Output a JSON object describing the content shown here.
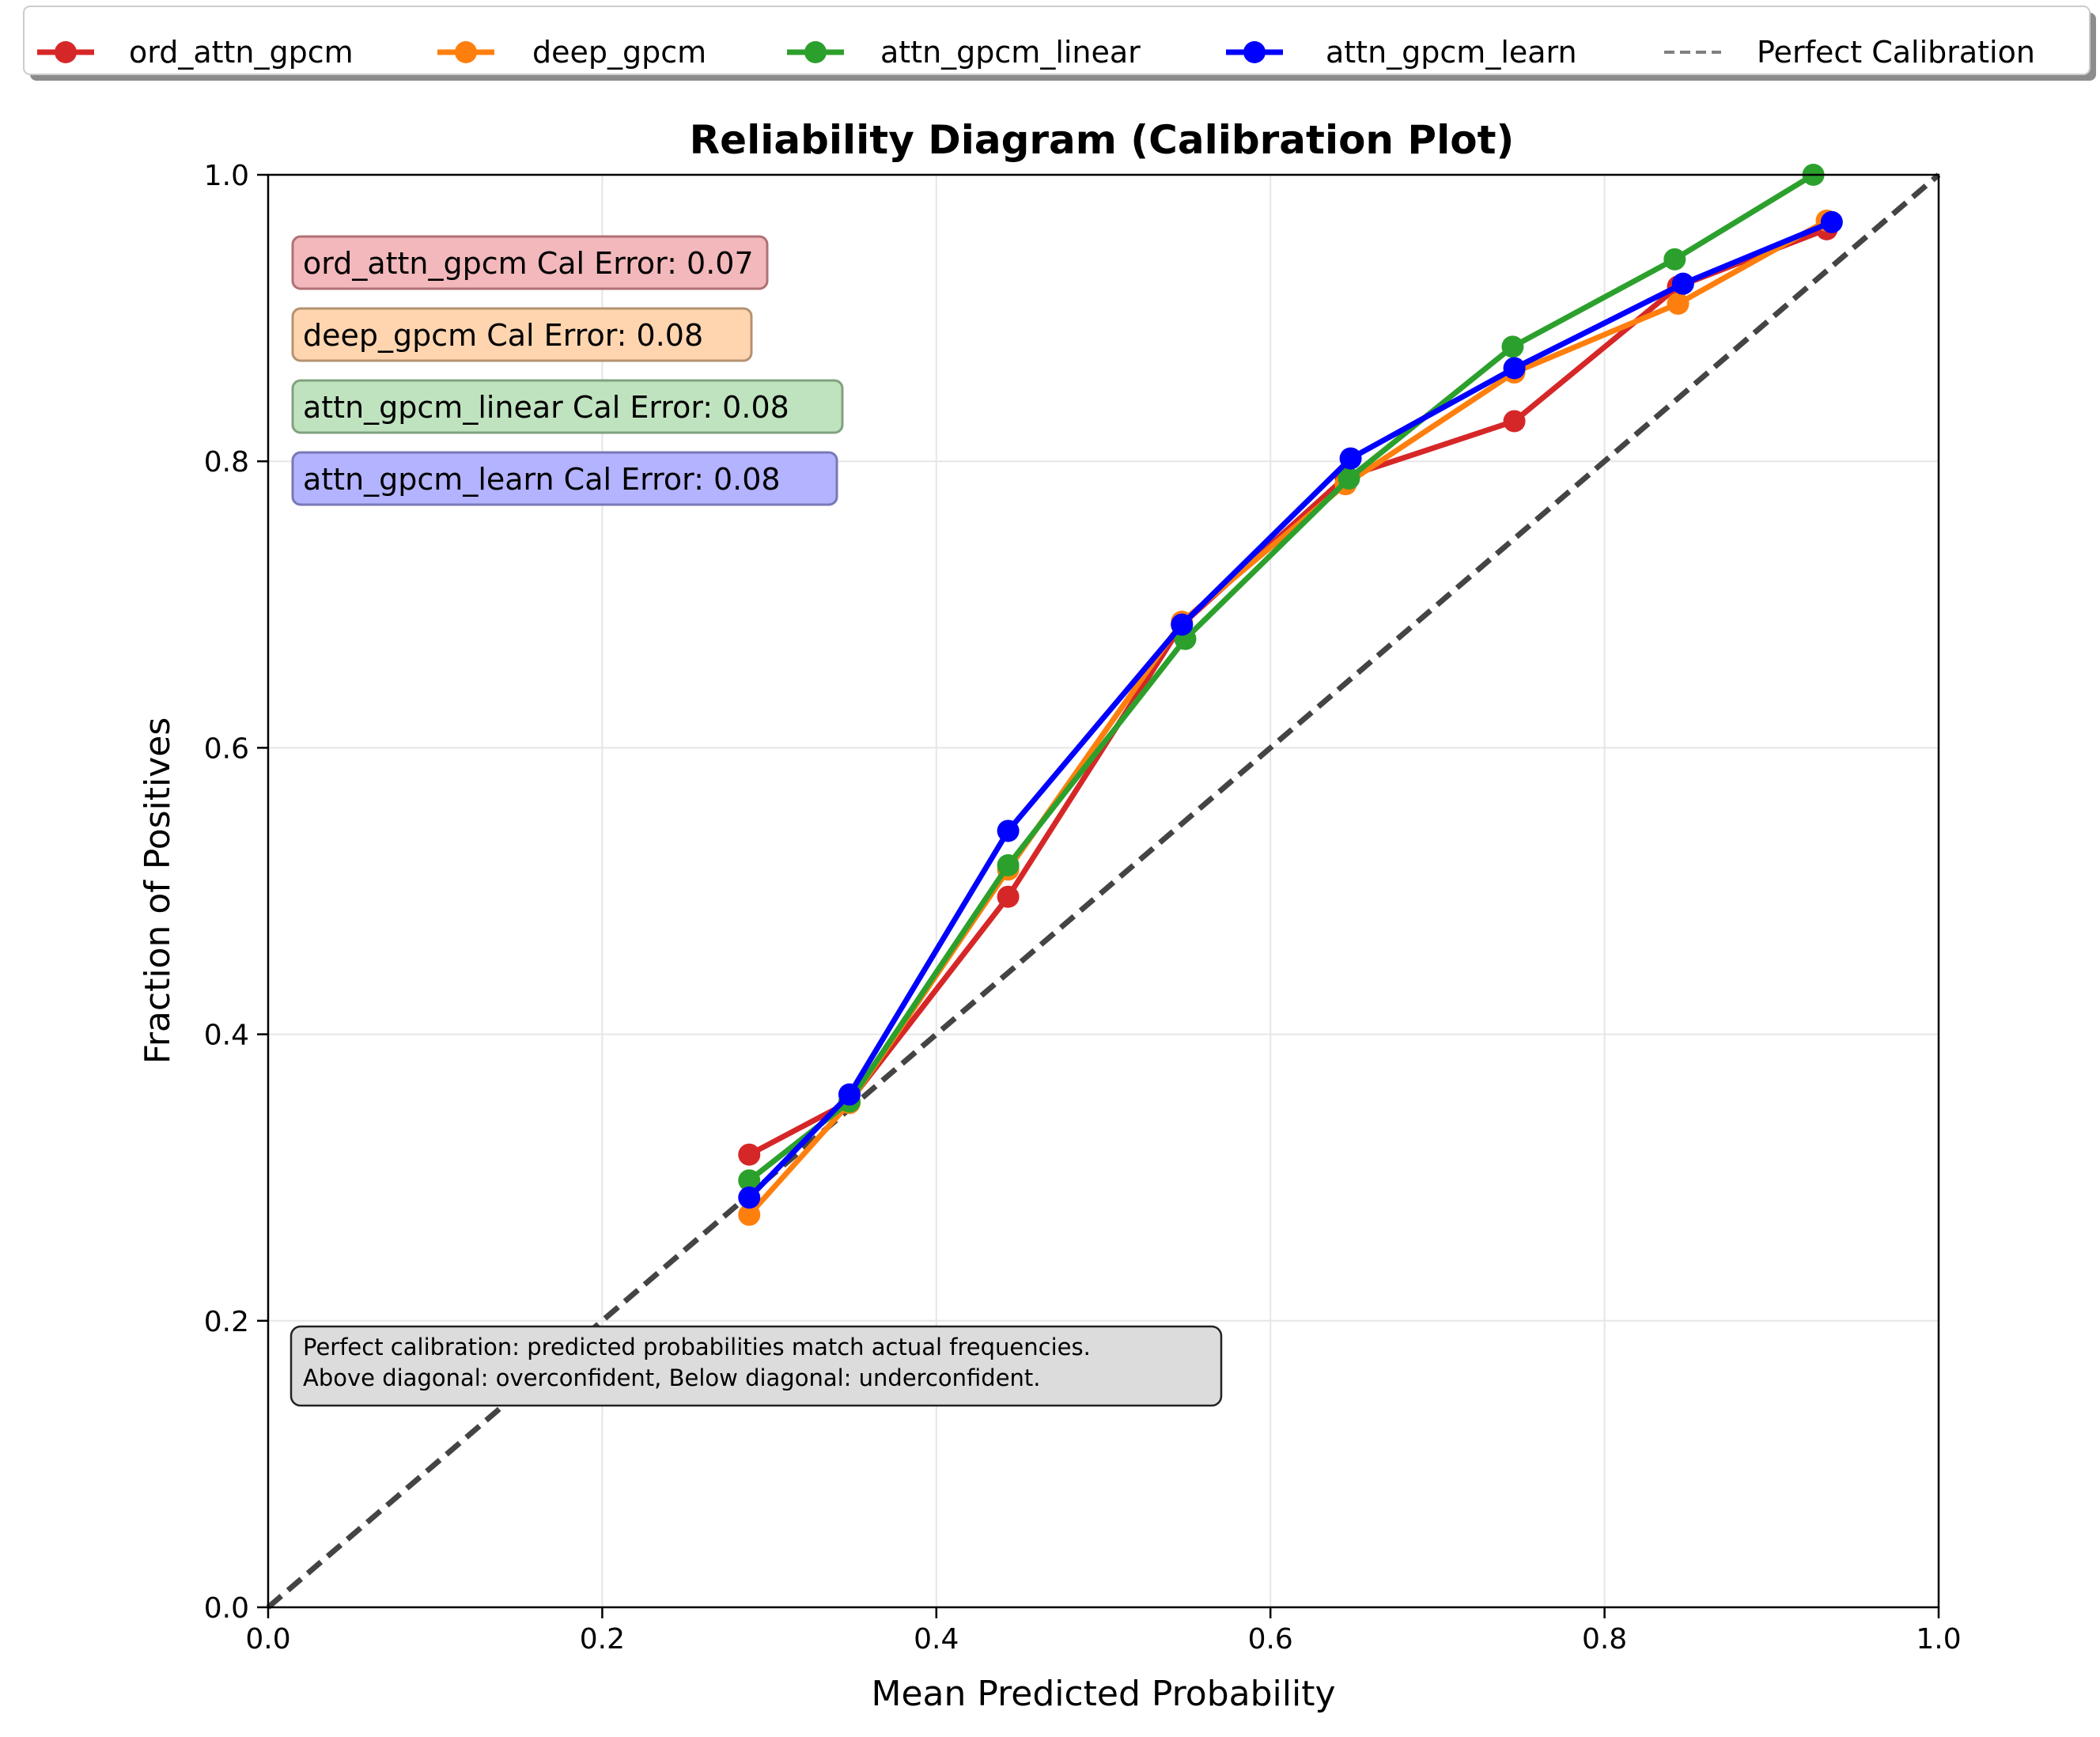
{
  "chart_data": {
    "type": "line",
    "title": "Reliability Diagram (Calibration Plot)",
    "xlabel": "Mean Predicted Probability",
    "ylabel": "Fraction of Positives",
    "xlim": [
      0.0,
      1.0
    ],
    "ylim": [
      0.0,
      1.0
    ],
    "x_ticks": [
      "0.0",
      "0.2",
      "0.4",
      "0.6",
      "0.8",
      "1.0"
    ],
    "y_ticks": [
      "0.0",
      "0.2",
      "0.4",
      "0.6",
      "0.8",
      "1.0"
    ],
    "grid": true,
    "legend_position": "top, above plot",
    "series": [
      {
        "name": "ord_attn_gpcm",
        "color": "#d62728",
        "x": [
          0.288,
          0.348,
          0.443,
          0.547,
          0.645,
          0.746,
          0.844,
          0.933
        ],
        "y": [
          0.316,
          0.353,
          0.496,
          0.686,
          0.789,
          0.828,
          0.922,
          0.962
        ]
      },
      {
        "name": "deep_gpcm",
        "color": "#ff7f0e",
        "x": [
          0.288,
          0.348,
          0.443,
          0.547,
          0.645,
          0.746,
          0.844,
          0.933
        ],
        "y": [
          0.274,
          0.352,
          0.515,
          0.688,
          0.784,
          0.862,
          0.91,
          0.968
        ]
      },
      {
        "name": "attn_gpcm_linear",
        "color": "#2ca02c",
        "x": [
          0.288,
          0.348,
          0.443,
          0.549,
          0.647,
          0.745,
          0.842,
          0.925
        ],
        "y": [
          0.298,
          0.353,
          0.518,
          0.676,
          0.788,
          0.88,
          0.941,
          1.0
        ]
      },
      {
        "name": "attn_gpcm_learn",
        "color": "#0000ff",
        "x": [
          0.288,
          0.348,
          0.443,
          0.547,
          0.648,
          0.746,
          0.847,
          0.936
        ],
        "y": [
          0.286,
          0.358,
          0.542,
          0.686,
          0.802,
          0.865,
          0.924,
          0.967
        ]
      }
    ],
    "reference_line": {
      "name": "Perfect Calibration",
      "color": "#444444",
      "x": [
        0.0,
        1.0
      ],
      "y": [
        0.0,
        1.0
      ]
    },
    "cal_error_boxes": [
      {
        "label": "ord_attn_gpcm Cal Error: 0.07",
        "fill": "#f2b8bb",
        "stroke": "#b07074"
      },
      {
        "label": "deep_gpcm Cal Error: 0.08",
        "fill": "#ffd5b0",
        "stroke": "#b49270"
      },
      {
        "label": "attn_gpcm_linear Cal Error: 0.08",
        "fill": "#c0e3bf",
        "stroke": "#80a27f"
      },
      {
        "label": "attn_gpcm_learn Cal Error: 0.08",
        "fill": "#b3b3ff",
        "stroke": "#7878b8"
      }
    ],
    "note": {
      "line1": "Perfect calibration: predicted probabilities match actual frequencies.",
      "line2": "Above diagonal: overconfident, Below diagonal: underconfident."
    }
  }
}
